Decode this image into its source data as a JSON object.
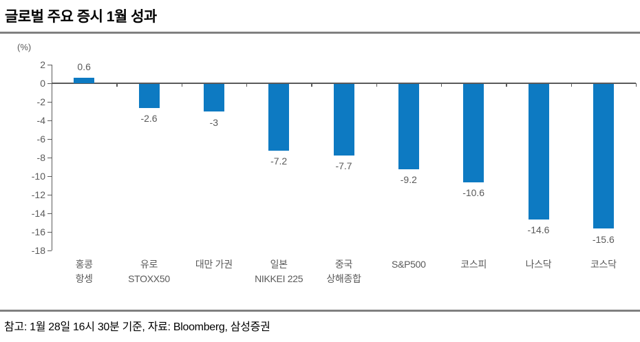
{
  "page": {
    "title": "글로벌 주요 증시 1월 성과",
    "footnote": "참고: 1월 28일 16시 30분 기준, 자료: Bloomberg, 삼성증권"
  },
  "chart_data": {
    "type": "bar",
    "title": "글로벌 주요 증시 1월 성과",
    "unit_label": "(%)",
    "categories": [
      "홍콩\n항셍",
      "유로\nSTOXX50",
      "대만 가권",
      "일본\nNIKKEI 225",
      "중국\n상해종합",
      "S&P500",
      "코스피",
      "나스닥",
      "코스닥"
    ],
    "values": [
      0.6,
      -2.6,
      -3,
      -7.2,
      -7.7,
      -9.2,
      -10.6,
      -14.6,
      -15.6
    ],
    "value_labels": [
      "0.6",
      "-2.6",
      "-3",
      "-7.2",
      "-7.7",
      "-9.2",
      "-10.6",
      "-14.6",
      "-15.6"
    ],
    "ylim": [
      -18,
      2
    ],
    "yticks": [
      2,
      0,
      -2,
      -4,
      -6,
      -8,
      -10,
      -12,
      -14,
      -16,
      -18
    ],
    "grid": false,
    "legend": "none",
    "bar_color": "#0d7ac2",
    "axis_color": "#595959",
    "label_color": "#595959",
    "rule_color": "#808080",
    "source": "Bloomberg, 삼성증권"
  }
}
